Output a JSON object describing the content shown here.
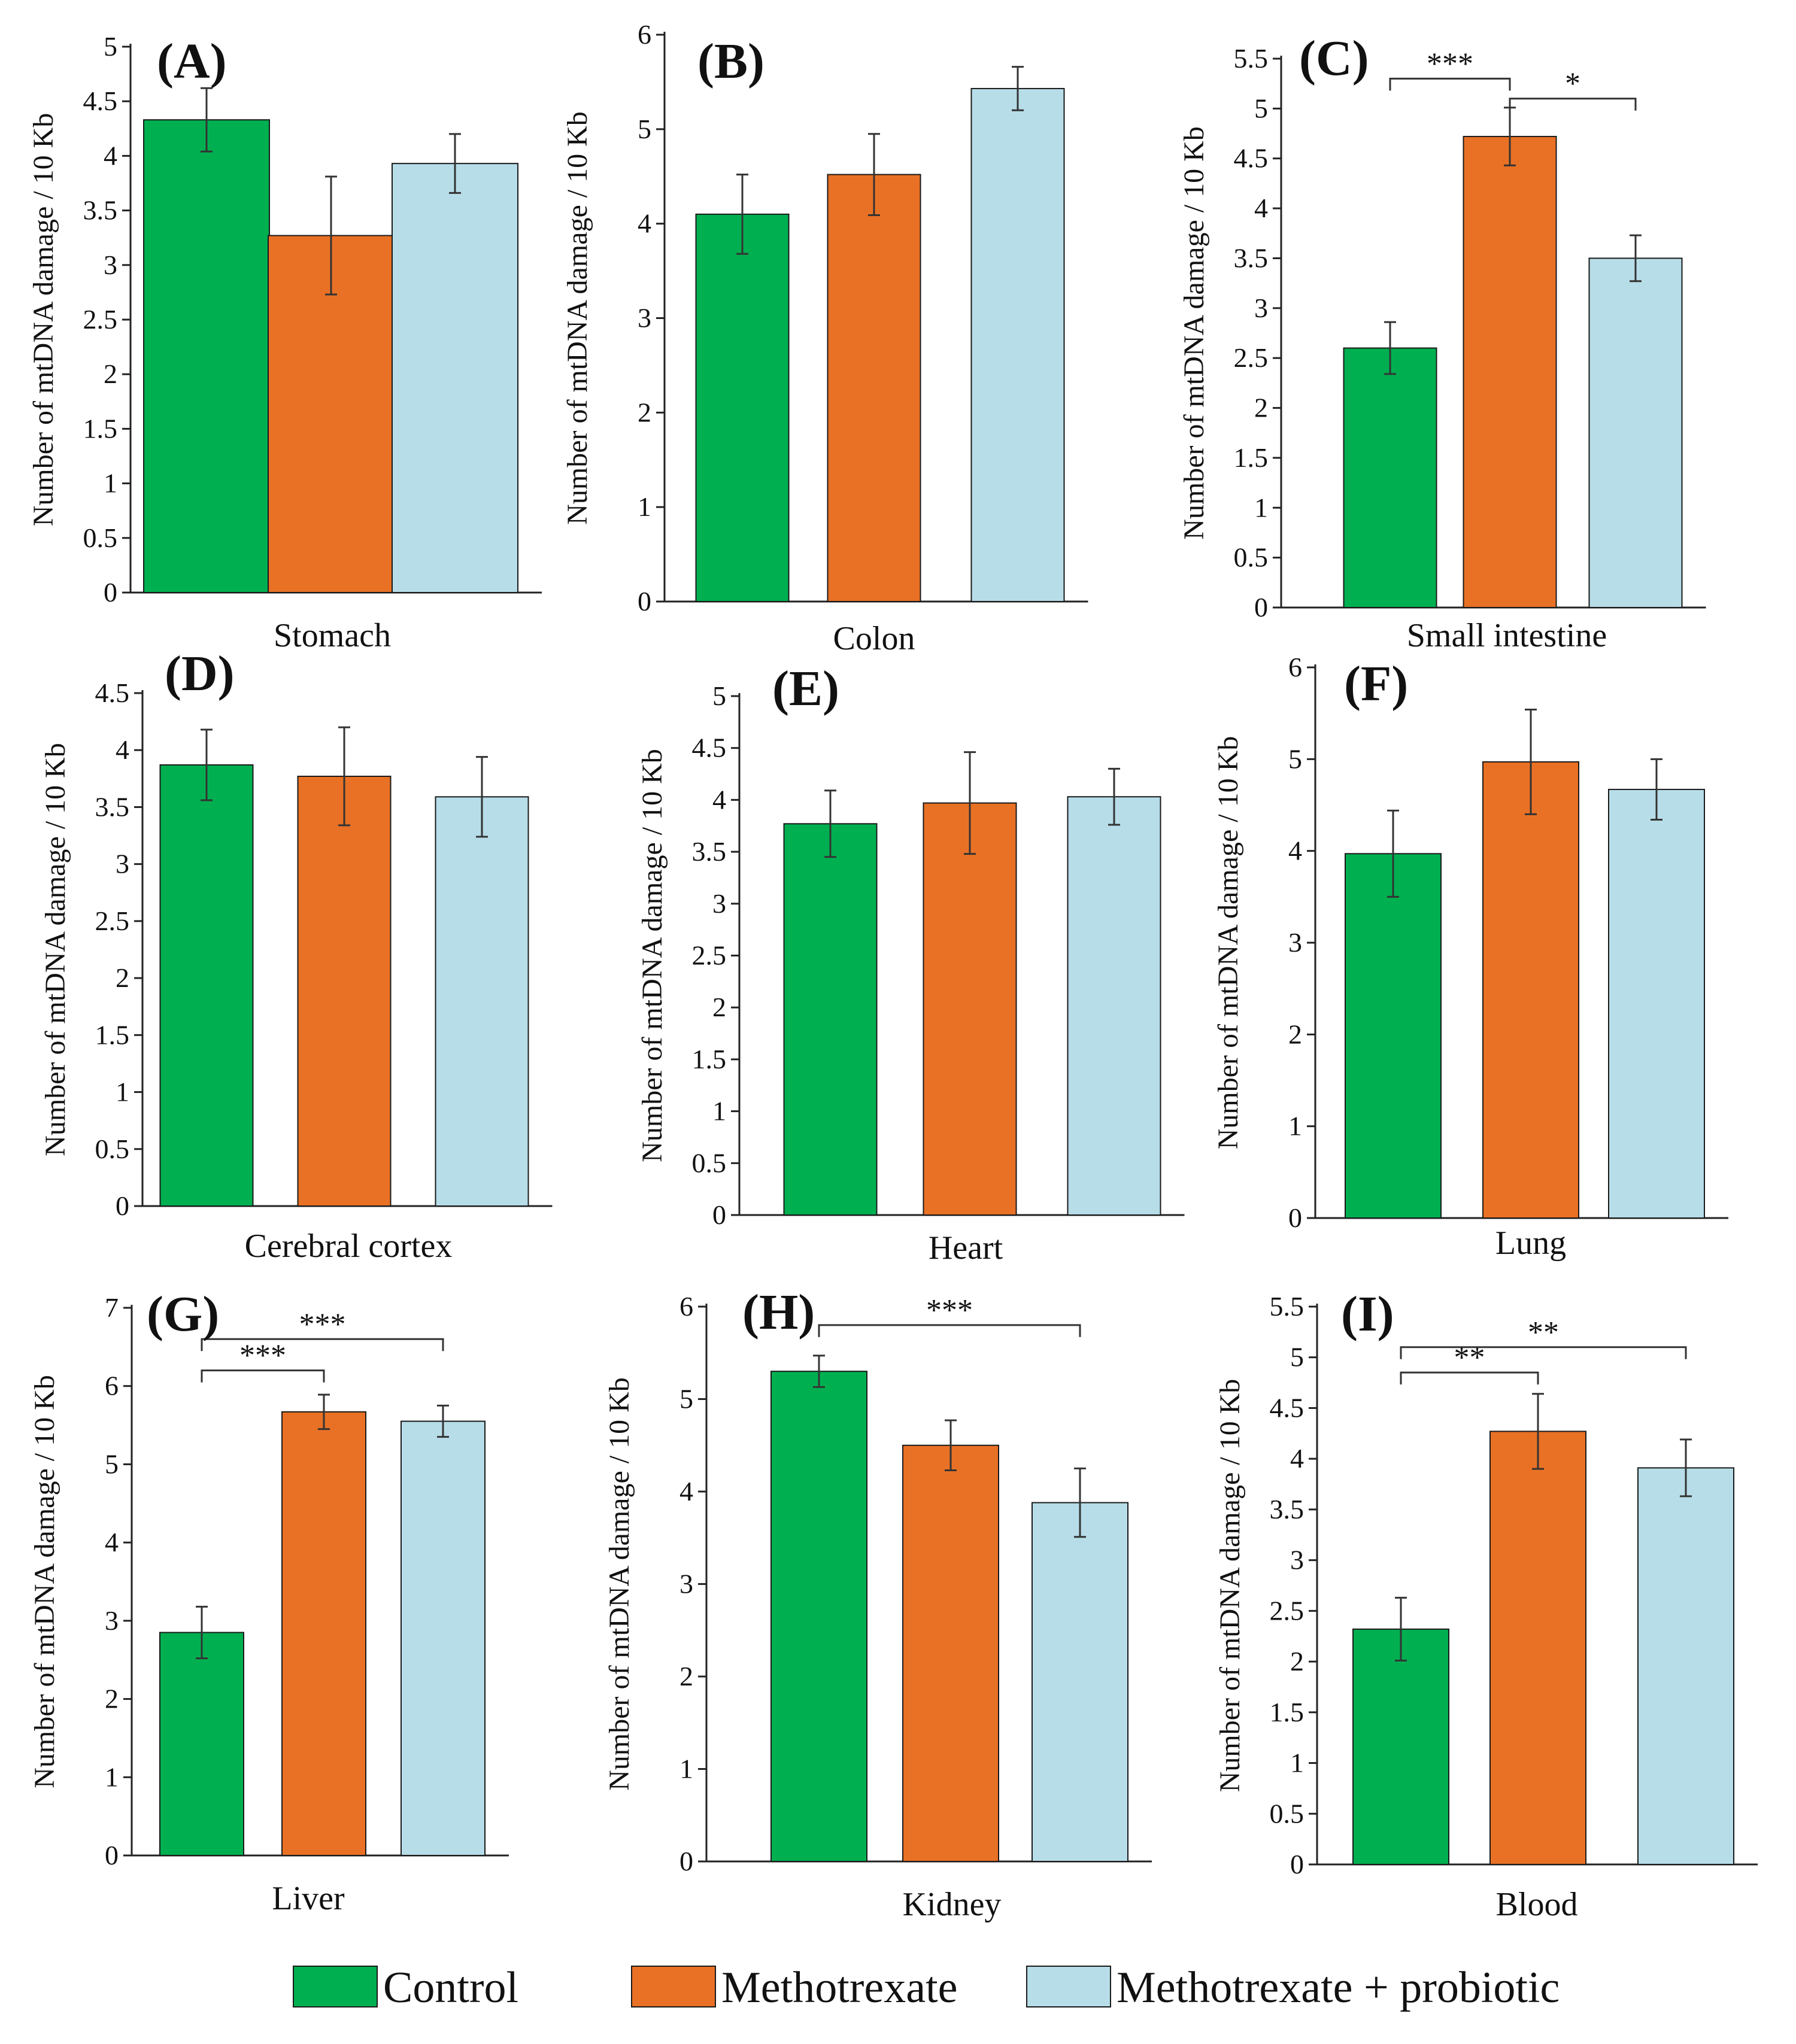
{
  "colors": {
    "control": "#00B050",
    "methotrexate": "#E97125",
    "probiotic": "#B7DDE8",
    "axis": "#222222",
    "bar_stroke": "#1a1a1a"
  },
  "legend": [
    {
      "label": "Control",
      "color_key": "control"
    },
    {
      "label": "Methotrexate",
      "color_key": "methotrexate"
    },
    {
      "label": "Methotrexate + probiotic",
      "color_key": "probiotic"
    }
  ],
  "chart_data": [
    {
      "type": "bar",
      "panel": "(A)",
      "xlabel": "Stomach",
      "ylabel": "Number of mtDNA damage / 10 Kb",
      "ylim": [
        0,
        5
      ],
      "ticks": [
        "0",
        "0.5",
        "1",
        "1.5",
        "2",
        "2.5",
        "3",
        "3.5",
        "4",
        "4.5",
        "5"
      ],
      "categories": [
        "Control",
        "Methotrexate",
        "Methotrexate + probiotic"
      ],
      "values": [
        4.33,
        3.27,
        3.93
      ],
      "errors": [
        0.29,
        0.54,
        0.27
      ],
      "significance": []
    },
    {
      "type": "bar",
      "panel": "(B)",
      "xlabel": "Colon",
      "ylabel": "Number of mtDNA damage / 10 Kb",
      "ylim": [
        0,
        6
      ],
      "ticks": [
        "0",
        "1",
        "2",
        "3",
        "4",
        "5",
        "6"
      ],
      "categories": [
        "Control",
        "Methotrexate",
        "Methotrexate + probiotic"
      ],
      "values": [
        4.1,
        4.52,
        5.43
      ],
      "errors": [
        0.42,
        0.43,
        0.23
      ],
      "significance": []
    },
    {
      "type": "bar",
      "panel": "(C)",
      "xlabel": "Small intestine",
      "ylabel": "Number of mtDNA damage / 10 Kb",
      "ylim": [
        0,
        5.5
      ],
      "ticks": [
        "0",
        "0.5",
        "1",
        "1.5",
        "2",
        "2.5",
        "3",
        "3.5",
        "4",
        "4.5",
        "5",
        "5.5"
      ],
      "categories": [
        "Control",
        "Methotrexate",
        "Methotrexate + probiotic"
      ],
      "values": [
        2.6,
        4.72,
        3.5
      ],
      "errors": [
        0.26,
        0.29,
        0.23
      ],
      "significance": [
        {
          "from": 0,
          "to": 1,
          "label": "***",
          "y": 5.3
        },
        {
          "from": 1,
          "to": 2,
          "label": "*",
          "y": 5.1
        }
      ]
    },
    {
      "type": "bar",
      "panel": "(D)",
      "xlabel": "Cerebral cortex",
      "ylabel": "Number of mtDNA damage / 10 Kb",
      "ylim": [
        0,
        4.5
      ],
      "ticks": [
        "0",
        "0.5",
        "1",
        "1.5",
        "2",
        "2.5",
        "3",
        "3.5",
        "4",
        "4.5"
      ],
      "categories": [
        "Control",
        "Methotrexate",
        "Methotrexate + probiotic"
      ],
      "values": [
        3.87,
        3.77,
        3.59
      ],
      "errors": [
        0.31,
        0.43,
        0.35
      ],
      "significance": []
    },
    {
      "type": "bar",
      "panel": "(E)",
      "xlabel": "Heart",
      "ylabel": "Number of mtDNA damage / 10 Kb",
      "ylim": [
        0,
        5
      ],
      "ticks": [
        "0",
        "0.5",
        "1",
        "1.5",
        "2",
        "2.5",
        "3",
        "3.5",
        "4",
        "4.5",
        "5"
      ],
      "categories": [
        "Control",
        "Methotrexate",
        "Methotrexate + probiotic"
      ],
      "values": [
        3.77,
        3.97,
        4.03
      ],
      "errors": [
        0.32,
        0.49,
        0.27
      ],
      "significance": []
    },
    {
      "type": "bar",
      "panel": "(F)",
      "xlabel": "Lung",
      "ylabel": "Number of mtDNA damage / 10 Kb",
      "ylim": [
        0,
        6
      ],
      "ticks": [
        "0",
        "1",
        "2",
        "3",
        "4",
        "5",
        "6"
      ],
      "categories": [
        "Control",
        "Methotrexate",
        "Methotrexate + probiotic"
      ],
      "values": [
        3.97,
        4.97,
        4.67
      ],
      "errors": [
        0.47,
        0.57,
        0.33
      ],
      "significance": []
    },
    {
      "type": "bar",
      "panel": "(G)",
      "xlabel": "Liver",
      "ylabel": "Number of mtDNA damage / 10 Kb",
      "ylim": [
        0,
        7
      ],
      "ticks": [
        "0",
        "1",
        "2",
        "3",
        "4",
        "5",
        "6",
        "7"
      ],
      "categories": [
        "Control",
        "Methotrexate",
        "Methotrexate + probiotic"
      ],
      "values": [
        2.85,
        5.67,
        5.55
      ],
      "errors": [
        0.33,
        0.22,
        0.2
      ],
      "significance": [
        {
          "from": 0,
          "to": 1,
          "label": "***",
          "y": 6.2
        },
        {
          "from": 0,
          "to": 2,
          "label": "***",
          "y": 6.6
        }
      ]
    },
    {
      "type": "bar",
      "panel": "(H)",
      "xlabel": "Kidney",
      "ylabel": "Number of mtDNA damage / 10 Kb",
      "ylim": [
        0,
        6
      ],
      "ticks": [
        "0",
        "1",
        "2",
        "3",
        "4",
        "5",
        "6"
      ],
      "categories": [
        "Control",
        "Methotrexate",
        "Methotrexate + probiotic"
      ],
      "values": [
        5.3,
        4.5,
        3.88
      ],
      "errors": [
        0.17,
        0.27,
        0.37
      ],
      "significance": [
        {
          "from": 0,
          "to": 2,
          "label": "***",
          "y": 5.8
        }
      ]
    },
    {
      "type": "bar",
      "panel": "(I)",
      "xlabel": "Blood",
      "ylabel": "Number of mtDNA damage / 10 Kb",
      "ylim": [
        0,
        5.5
      ],
      "ticks": [
        "0",
        "0.5",
        "1",
        "1.5",
        "2",
        "2.5",
        "3",
        "3.5",
        "4",
        "4.5",
        "5",
        "5.5"
      ],
      "categories": [
        "Control",
        "Methotrexate",
        "Methotrexate + probiotic"
      ],
      "values": [
        2.32,
        4.27,
        3.91
      ],
      "errors": [
        0.31,
        0.37,
        0.28
      ],
      "significance": [
        {
          "from": 0,
          "to": 1,
          "label": "**",
          "y": 4.85
        },
        {
          "from": 0,
          "to": 2,
          "label": "**",
          "y": 5.1
        }
      ]
    }
  ]
}
